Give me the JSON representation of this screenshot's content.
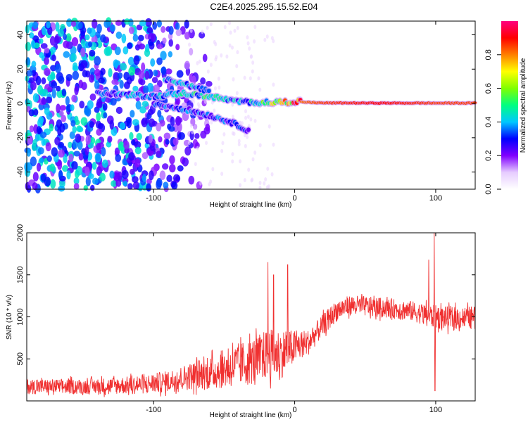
{
  "title": "C2E4.2025.295.15.52.E04",
  "colors": {
    "snr_line": "#f03030",
    "axis": "#000000",
    "background": "#ffffff"
  },
  "chart_data": [
    {
      "type": "heatmap",
      "name": "spectrogram",
      "xlabel": "Height of straight line (km)",
      "ylabel": "Frequency (Hz)",
      "xlim": [
        -190,
        128
      ],
      "ylim": [
        -50,
        48
      ],
      "xticks": [
        -100,
        0,
        100
      ],
      "yticks": [
        -40,
        -20,
        0,
        20,
        40
      ],
      "colorbar": {
        "label": "Normalized spectral amplitude",
        "range": [
          0.0,
          1.0
        ],
        "ticks": [
          0.0,
          0.2,
          0.4,
          0.6,
          0.8
        ],
        "colormap": [
          "#ffffff",
          "#e6ccff",
          "#8000ff",
          "#0000ff",
          "#00c8ff",
          "#00ff80",
          "#80ff00",
          "#ffff00",
          "#ff8000",
          "#ff0000",
          "#ff0080"
        ]
      },
      "features": [
        {
          "label": "noise region",
          "x_range": [
            -190,
            -75
          ],
          "f_range": [
            -50,
            48
          ],
          "amplitude": 0.12
        },
        {
          "label": "main signal track",
          "x": [
            -140,
            -120,
            -100,
            -80,
            -60,
            -40,
            -20,
            0,
            20,
            60,
            100,
            128
          ],
          "f": [
            6,
            5,
            4,
            6,
            4,
            1,
            0.5,
            1,
            0.3,
            0.2,
            0.2,
            0.2
          ],
          "amplitude": [
            0.3,
            0.35,
            0.35,
            0.4,
            0.45,
            0.35,
            0.5,
            0.8,
            0.85,
            0.9,
            0.85,
            0.85
          ]
        },
        {
          "label": "descending branch",
          "x": [
            -100,
            -80,
            -60,
            -45,
            -32
          ],
          "f": [
            0,
            -3,
            -7,
            -11,
            -16
          ],
          "amplitude": 0.3
        },
        {
          "label": "upper branch",
          "x": [
            -92,
            -80,
            -70,
            -60
          ],
          "f": [
            14,
            12,
            9,
            7
          ],
          "amplitude": 0.35
        }
      ]
    },
    {
      "type": "line",
      "name": "snr",
      "xlabel": "Height of straight line (km)",
      "ylabel": "SNR (10 * v/v)",
      "xlim": [
        -190,
        128
      ],
      "ylim": [
        0,
        2000
      ],
      "xticks": [
        -100,
        0,
        100
      ],
      "yticks": [
        500,
        1000,
        1500,
        2000
      ],
      "series": [
        {
          "name": "SNR",
          "x": [
            -190,
            -170,
            -150,
            -130,
            -110,
            -90,
            -75,
            -60,
            -50,
            -40,
            -30,
            -20,
            -10,
            0,
            10,
            20,
            30,
            40,
            60,
            80,
            95,
            100,
            110,
            128
          ],
          "mean": [
            170,
            170,
            170,
            180,
            190,
            230,
            290,
            330,
            380,
            430,
            470,
            550,
            560,
            640,
            700,
            900,
            1080,
            1140,
            1110,
            1080,
            1020,
            1000,
            980,
            1000
          ],
          "spread": [
            90,
            90,
            90,
            100,
            110,
            130,
            160,
            200,
            230,
            260,
            280,
            300,
            300,
            200,
            150,
            130,
            130,
            120,
            120,
            120,
            130,
            140,
            140,
            130
          ]
        }
      ],
      "spikes": [
        {
          "x": -19,
          "y": 1650
        },
        {
          "x": -15,
          "y": 1500
        },
        {
          "x": -5,
          "y": 1620
        },
        {
          "x": 95,
          "y": 1680
        },
        {
          "x": 99,
          "y": 2000
        },
        {
          "x": 99.5,
          "y": 120
        }
      ]
    }
  ]
}
